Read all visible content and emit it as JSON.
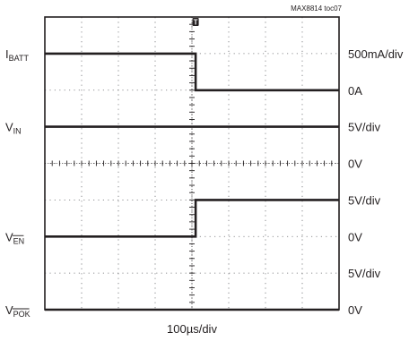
{
  "chart_data": {
    "type": "line",
    "id_label": "MAX8814 toc07",
    "xlabel": "100µs/div",
    "grid": true,
    "trigger_marker": "T",
    "trigger_division": 4.1,
    "divisions": {
      "x": 8,
      "y": 8
    },
    "channels": [
      {
        "name": "I",
        "name_sub": "BATT",
        "overline": false,
        "scale_label": "500mA/div",
        "zero_label": "0A",
        "zero_division": 2,
        "points": [
          [
            0,
            1.0
          ],
          [
            4.1,
            1.0
          ],
          [
            4.1,
            0.0
          ],
          [
            8,
            0.0
          ]
        ]
      },
      {
        "name": "V",
        "name_sub": "IN",
        "overline": false,
        "scale_label": "5V/div",
        "zero_label": "0V",
        "zero_division": 4,
        "points": [
          [
            0,
            1.0
          ],
          [
            8,
            1.0
          ]
        ]
      },
      {
        "name": "V",
        "name_sub": "EN",
        "overline": true,
        "scale_label": "5V/div",
        "zero_label": "0V",
        "zero_division": 6,
        "points": [
          [
            0,
            0.0
          ],
          [
            4.1,
            0.0
          ],
          [
            4.1,
            1.0
          ],
          [
            8,
            1.0
          ]
        ]
      },
      {
        "name": "V",
        "name_sub": "POK",
        "overline": true,
        "scale_label": "5V/div",
        "zero_label": "0V",
        "zero_division": 8,
        "points": [
          [
            0,
            0.0
          ],
          [
            8,
            0.0
          ]
        ]
      }
    ]
  }
}
